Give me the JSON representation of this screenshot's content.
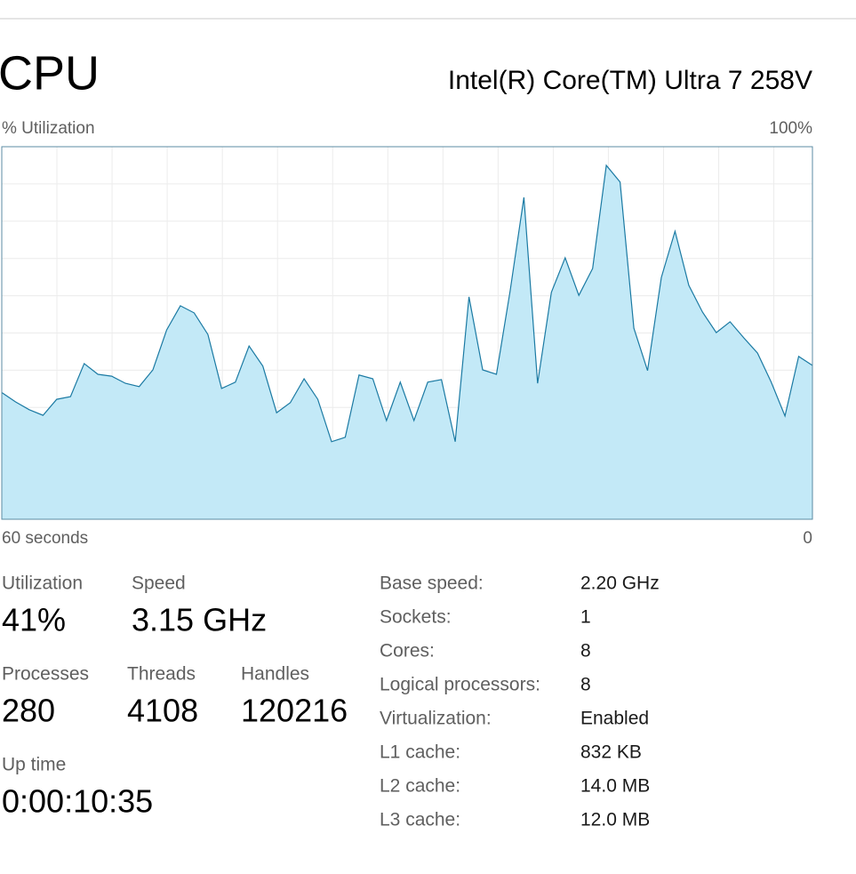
{
  "header": {
    "title": "CPU",
    "model": "Intel(R) Core(TM) Ultra 7 258V"
  },
  "graph": {
    "type": "area",
    "y_label": "% Utilization",
    "ylim": [
      0,
      100
    ],
    "yticks": [
      {
        "value": 100,
        "label": "100%"
      }
    ],
    "x_labels": [
      "60 seconds",
      "0"
    ],
    "color": "#c3e9f7",
    "line_color": "#1b7aa3",
    "values": [
      34,
      31.5,
      29.4,
      27.9,
      32.2,
      32.9,
      41.8,
      38.9,
      38.4,
      36.5,
      35.6,
      40.1,
      50.8,
      57.3,
      55.4,
      49.6,
      35.1,
      36.8,
      46.5,
      41.1,
      28.6,
      31.3,
      37.7,
      32.2,
      20.8,
      22,
      38.7,
      37.7,
      26.5,
      36.8,
      26.5,
      36.8,
      37.5,
      20.8,
      59.7,
      40.1,
      38.9,
      61.3,
      86.4,
      36.5,
      60.9,
      70.2,
      60.1,
      67.3,
      95,
      90.5,
      51.3,
      39.9,
      64.9,
      77.3,
      62.8,
      55.6,
      50.1,
      53,
      48.7,
      44.6,
      36.8,
      27.7,
      43.7,
      41.3
    ]
  },
  "stats": {
    "utilization": {
      "label": "Utilization",
      "value": "41%"
    },
    "speed": {
      "label": "Speed",
      "value": "3.15 GHz"
    },
    "processes": {
      "label": "Processes",
      "value": "280"
    },
    "threads": {
      "label": "Threads",
      "value": "4108"
    },
    "handles": {
      "label": "Handles",
      "value": "120216"
    },
    "uptime": {
      "label": "Up time",
      "value": "0:00:10:35"
    }
  },
  "details": [
    {
      "label": "Base speed:",
      "value": "2.20 GHz"
    },
    {
      "label": "Sockets:",
      "value": "1"
    },
    {
      "label": "Cores:",
      "value": "8"
    },
    {
      "label": "Logical processors:",
      "value": "8"
    },
    {
      "label": "Virtualization:",
      "value": "Enabled"
    },
    {
      "label": "L1 cache:",
      "value": "832 KB"
    },
    {
      "label": "L2 cache:",
      "value": "14.0 MB"
    },
    {
      "label": "L3 cache:",
      "value": "12.0 MB"
    }
  ]
}
